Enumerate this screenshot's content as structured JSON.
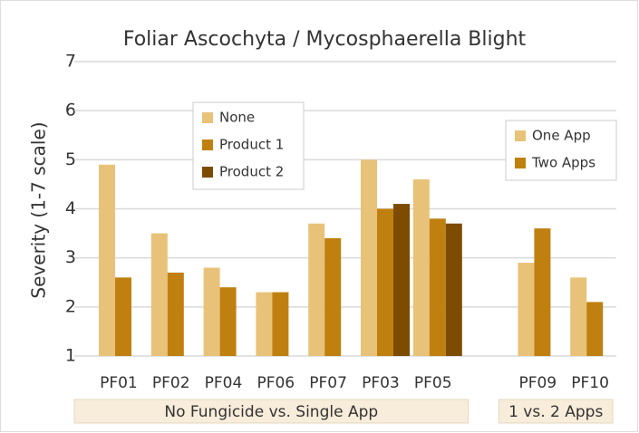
{
  "chart_data": {
    "type": "bar",
    "title": "Foliar Ascochyta / Mycosphaerella Blight",
    "y_label": "Severity (1-7 scale)",
    "categories": [
      "PF01",
      "PF02",
      "PF04",
      "PF06",
      "PF07",
      "PF03",
      "PF05",
      null,
      "PF09",
      "PF10"
    ],
    "series": [
      {
        "name": "None",
        "color": "#e8c279",
        "values": [
          4.9,
          3.5,
          2.8,
          2.3,
          3.7,
          5.0,
          4.6,
          null,
          null,
          null
        ]
      },
      {
        "name": "Product 1",
        "color": "#c0800f",
        "values": [
          2.6,
          2.7,
          2.4,
          2.3,
          3.4,
          4.0,
          3.8,
          null,
          null,
          null
        ]
      },
      {
        "name": "Product 2",
        "color": "#7b4c02",
        "values": [
          null,
          null,
          null,
          null,
          null,
          4.1,
          3.7,
          null,
          null,
          null
        ]
      },
      {
        "name": "One App",
        "color": "#e8c279",
        "values": [
          null,
          null,
          null,
          null,
          null,
          null,
          null,
          null,
          2.9,
          2.6
        ]
      },
      {
        "name": "Two Apps",
        "color": "#c0800f",
        "values": [
          null,
          null,
          null,
          null,
          null,
          null,
          null,
          null,
          3.6,
          2.1
        ]
      }
    ],
    "groups": [
      "No Fungicide vs. Single App",
      "1 vs. 2 Apps"
    ],
    "ylim": [
      1,
      7
    ],
    "yticks": [
      1,
      2,
      3,
      4,
      5,
      6,
      7
    ],
    "grid": true
  }
}
